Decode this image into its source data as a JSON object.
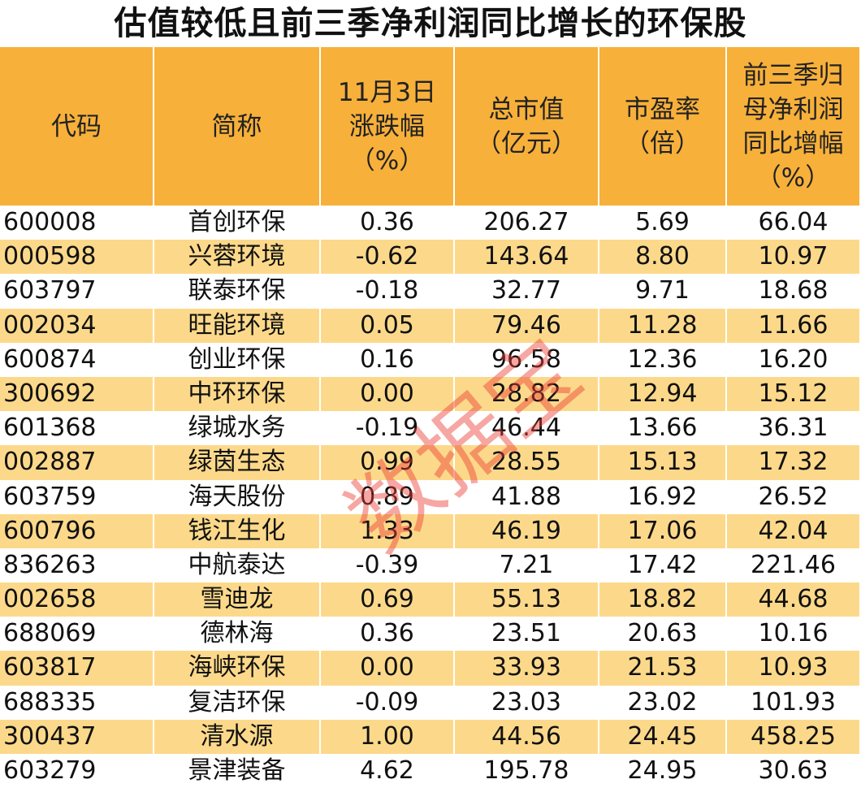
{
  "title": "估值较低且前三季净利润同比增长的环保股",
  "watermark": "数据宝",
  "table": {
    "header": [
      "代码",
      "简称",
      "11月3日\n涨跌幅\n（%）",
      "总市值\n（亿元）",
      "市盈率\n（倍）",
      "前三季归\n母净利润\n同比增幅\n（%）"
    ],
    "rows": [
      [
        "600008",
        "首创环保",
        "0.36",
        "206.27",
        "5.69",
        "66.04"
      ],
      [
        "000598",
        "兴蓉环境",
        "-0.62",
        "143.64",
        "8.80",
        "10.97"
      ],
      [
        "603797",
        "联泰环保",
        "-0.18",
        "32.77",
        "9.71",
        "18.68"
      ],
      [
        "002034",
        "旺能环境",
        "0.05",
        "79.46",
        "11.28",
        "11.66"
      ],
      [
        "600874",
        "创业环保",
        "0.16",
        "96.58",
        "12.36",
        "16.20"
      ],
      [
        "300692",
        "中环环保",
        "0.00",
        "28.82",
        "12.94",
        "15.12"
      ],
      [
        "601368",
        "绿城水务",
        "-0.19",
        "46.44",
        "13.66",
        "36.31"
      ],
      [
        "002887",
        "绿茵生态",
        "0.99",
        "28.55",
        "15.13",
        "17.32"
      ],
      [
        "603759",
        "海天股份",
        "0.89",
        "41.88",
        "16.92",
        "26.52"
      ],
      [
        "600796",
        "钱江生化",
        "1.33",
        "46.19",
        "17.06",
        "42.04"
      ],
      [
        "836263",
        "中航泰达",
        "-0.39",
        "7.21",
        "17.42",
        "221.46"
      ],
      [
        "002658",
        "雪迪龙",
        "0.69",
        "55.13",
        "18.82",
        "44.68"
      ],
      [
        "688069",
        "德林海",
        "0.36",
        "23.51",
        "20.63",
        "10.16"
      ],
      [
        "603817",
        "海峡环保",
        "0.00",
        "33.93",
        "21.53",
        "10.93"
      ],
      [
        "688335",
        "复洁环保",
        "-0.09",
        "23.03",
        "23.02",
        "101.93"
      ],
      [
        "300437",
        "清水源",
        "1.00",
        "44.56",
        "24.45",
        "458.25"
      ],
      [
        "603279",
        "景津装备",
        "4.62",
        "195.78",
        "24.95",
        "30.63"
      ]
    ]
  }
}
